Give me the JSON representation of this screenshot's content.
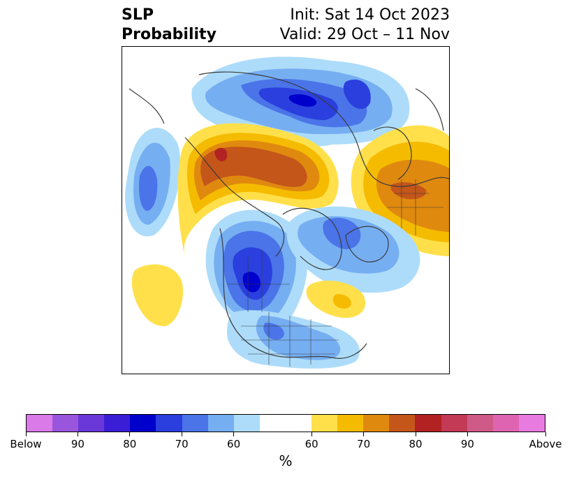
{
  "header": {
    "title_line1": "SLP",
    "title_line2": "Probability",
    "init_text": "Init: Sat 14 Oct 2023",
    "valid_text": "Valid: 29 Oct – 11 Nov"
  },
  "colorbar": {
    "colors": [
      "#d97ae8",
      "#9a55dd",
      "#6a37d8",
      "#3a1ed6",
      "#0000cd",
      "#2a3fde",
      "#4a74e8",
      "#76aef2",
      "#addcfa",
      "#ffffff",
      "#ffffff",
      "#ffe04a",
      "#f5bb00",
      "#e0890f",
      "#c4561a",
      "#b22222",
      "#c23a55",
      "#cf5a88",
      "#de64b1",
      "#e87be0"
    ],
    "tick_labels": [
      "Below",
      "90",
      "80",
      "70",
      "60",
      "60",
      "70",
      "80",
      "90",
      "Above"
    ],
    "unit": "%"
  },
  "map": {
    "projection": "North polar stereographic",
    "field": "Sea level pressure probability",
    "feature_names": [
      "coastlines-and-borders",
      "us-state-lines",
      "shaded-probability-anomalies"
    ]
  }
}
